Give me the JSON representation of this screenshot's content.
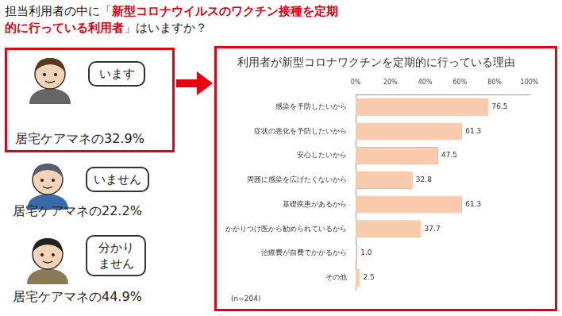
{
  "header": {
    "title_before": "担当利用者の中に「",
    "title_highlight": "新型コロナウイルスのワクチン接種を定期的に行っている利用者",
    "title_after": "」はいますか？"
  },
  "personas": [
    {
      "answer": "います",
      "caption": "居宅ケアマネの32.9%"
    },
    {
      "answer": "いません",
      "caption": "居宅ケアマネの22.2%"
    },
    {
      "answer": "分かりません",
      "caption": "居宅ケアマネの44.9%"
    }
  ],
  "chart_data": {
    "type": "bar",
    "orientation": "horizontal",
    "title": "利用者が新型コロナワクチンを定期的に行っている理由",
    "categories": [
      "感染を予防したいから",
      "症状の悪化を予防したいから",
      "安心したいから",
      "周囲に感染を広げたくないから",
      "基礎疾患があるから",
      "かかりつけ医から勧められているから",
      "治療費が自費でかかるから",
      "その他"
    ],
    "values": [
      76.5,
      61.3,
      47.5,
      32.8,
      61.3,
      37.7,
      1.0,
      2.5
    ],
    "value_labels": [
      "76.5",
      "61.3",
      "47.5",
      "32.8",
      "61.3",
      "37.7",
      "1.0",
      "2.5"
    ],
    "color": "#f8cbad",
    "xlim": [
      0,
      100
    ],
    "xticks": [
      {
        "value": 0,
        "label": "0%"
      },
      {
        "value": 20,
        "label": "20%"
      },
      {
        "value": 40,
        "label": "40%"
      },
      {
        "value": 60,
        "label": "60%"
      },
      {
        "value": 80,
        "label": "80%"
      },
      {
        "value": 100,
        "label": "100%"
      }
    ],
    "grid": false,
    "data_labels": true,
    "annotation": "(n=204)"
  }
}
